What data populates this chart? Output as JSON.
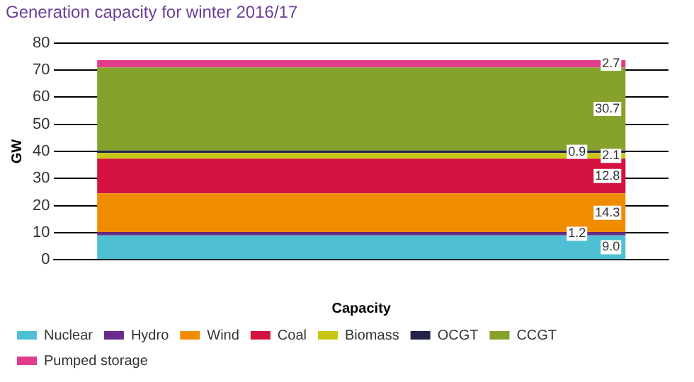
{
  "chart_data": {
    "type": "bar",
    "title": "Generation capacity for winter 2016/17",
    "xlabel": "Capacity",
    "ylabel": "GW",
    "categories": [
      null
    ],
    "stacked": true,
    "series": [
      {
        "name": "Nuclear",
        "color": "#4fc0d4",
        "values": [
          9.0
        ],
        "value_labels": [
          "9.0"
        ]
      },
      {
        "name": "Hydro",
        "color": "#6a2c8c",
        "values": [
          1.2
        ],
        "value_labels": [
          "1.2"
        ]
      },
      {
        "name": "Wind",
        "color": "#f08c00",
        "values": [
          14.3
        ],
        "value_labels": [
          "14.3"
        ]
      },
      {
        "name": "Coal",
        "color": "#d4123f",
        "values": [
          12.8
        ],
        "value_labels": [
          "12.8"
        ]
      },
      {
        "name": "Biomass",
        "color": "#c8c814",
        "values": [
          2.1
        ],
        "value_labels": [
          "2.1"
        ]
      },
      {
        "name": "OCGT",
        "color": "#22224a",
        "values": [
          0.9
        ],
        "value_labels": [
          "0.9"
        ]
      },
      {
        "name": "CCGT",
        "color": "#86a22c",
        "values": [
          30.7
        ],
        "value_labels": [
          "30.7"
        ]
      },
      {
        "name": "Pumped storage",
        "color": "#e03c8c",
        "values": [
          2.7
        ],
        "value_labels": [
          "2.7"
        ]
      }
    ],
    "ylim": [
      0,
      80
    ],
    "yticks": [
      0,
      10,
      20,
      30,
      40,
      50,
      60,
      70,
      80
    ],
    "grid": "y",
    "legend": "bottom"
  }
}
